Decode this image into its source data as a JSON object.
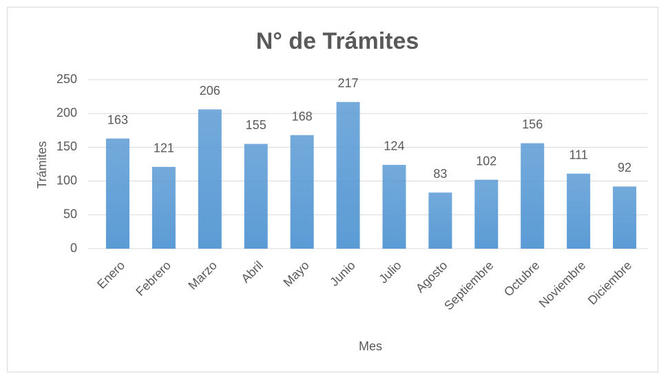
{
  "chart_data": {
    "type": "bar",
    "title": "N° de Trámites",
    "x_label": "Mes",
    "y_label": "Trámites",
    "categories": [
      "Enero",
      "Febrero",
      "Marzo",
      "Abril",
      "Mayo",
      "Junio",
      "Julio",
      "Agosto",
      "Septiembre",
      "Octubre",
      "Noviembre",
      "Diciembre"
    ],
    "values": [
      163,
      121,
      206,
      155,
      168,
      217,
      124,
      83,
      102,
      156,
      111,
      92
    ],
    "color": "#5b9bd5",
    "ylim": [
      0,
      250
    ],
    "yticks": [
      0,
      50,
      100,
      150,
      200,
      250
    ],
    "grid": true
  }
}
